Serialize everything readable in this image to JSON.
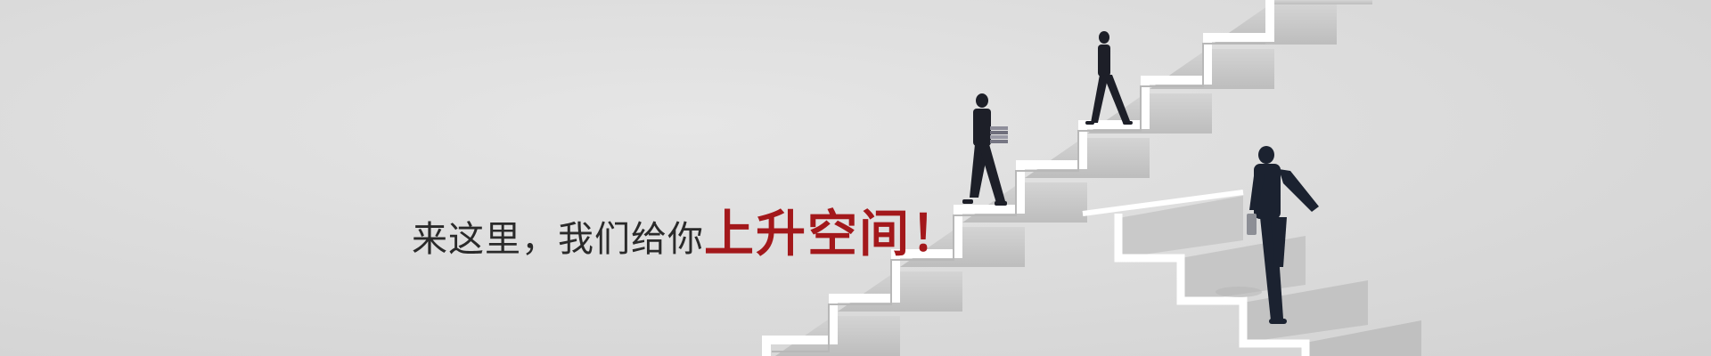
{
  "banner": {
    "slogan_plain": "来这里，我们给你",
    "slogan_accent": "上升空间！"
  },
  "colors": {
    "background": "#dcdcdc",
    "accent_red": "#a3181b",
    "text_dark": "#2a2a2a",
    "stair_white": "#ffffff",
    "stair_shadow": "#c4c4c4",
    "suit": "#1d1f28"
  }
}
